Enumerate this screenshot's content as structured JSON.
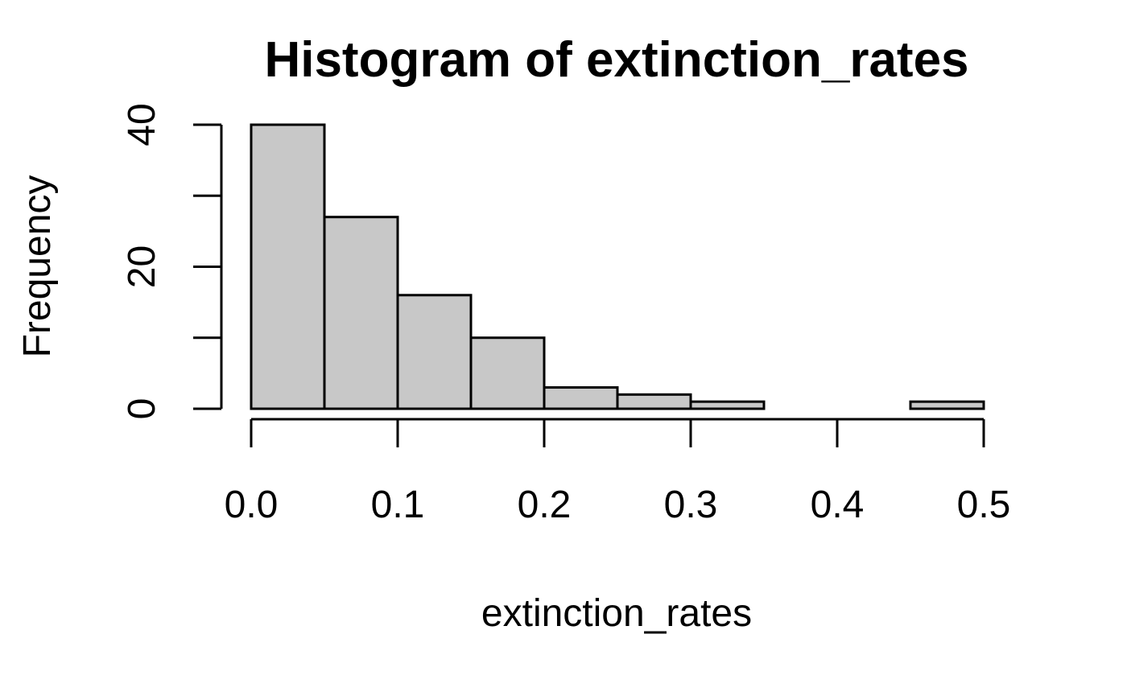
{
  "chart_data": {
    "type": "bar",
    "title": "Histogram of extinction_rates",
    "xlabel": "extinction_rates",
    "ylabel": "Frequency",
    "bins": [
      {
        "start": 0.0,
        "end": 0.05,
        "count": 40
      },
      {
        "start": 0.05,
        "end": 0.1,
        "count": 27
      },
      {
        "start": 0.1,
        "end": 0.15,
        "count": 16
      },
      {
        "start": 0.15,
        "end": 0.2,
        "count": 10
      },
      {
        "start": 0.2,
        "end": 0.25,
        "count": 3
      },
      {
        "start": 0.25,
        "end": 0.3,
        "count": 2
      },
      {
        "start": 0.3,
        "end": 0.35,
        "count": 1
      },
      {
        "start": 0.35,
        "end": 0.4,
        "count": 0
      },
      {
        "start": 0.4,
        "end": 0.45,
        "count": 0
      },
      {
        "start": 0.45,
        "end": 0.5,
        "count": 1
      }
    ],
    "xlim": [
      0.0,
      0.5
    ],
    "ylim": [
      0,
      40
    ],
    "x_ticks": [
      0.0,
      0.1,
      0.2,
      0.3,
      0.4,
      0.5
    ],
    "x_tick_labels": [
      "0.0",
      "0.1",
      "0.2",
      "0.3",
      "0.4",
      "0.5"
    ],
    "y_ticks": [
      0,
      10,
      20,
      30,
      40
    ],
    "y_tick_labels": [
      "0",
      "",
      "20",
      "",
      "40"
    ],
    "grid": false,
    "bar_fill": "#c8c8c8",
    "bar_edge": "#000000"
  }
}
